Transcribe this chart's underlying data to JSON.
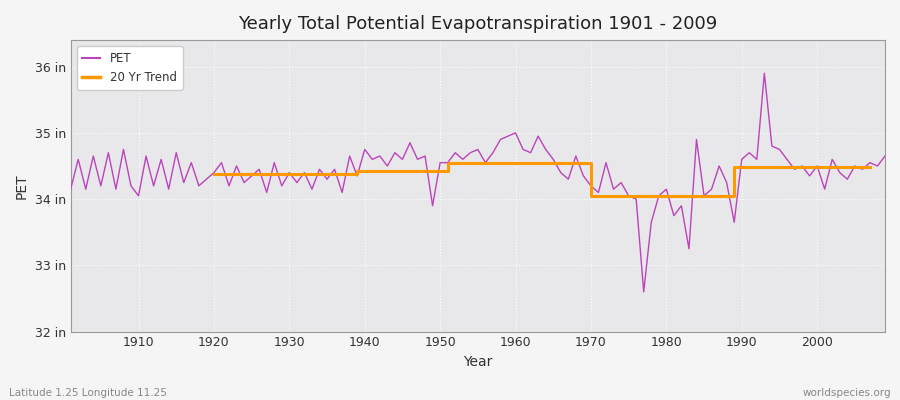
{
  "title": "Yearly Total Potential Evapotranspiration 1901 - 2009",
  "xlabel": "Year",
  "ylabel": "PET",
  "subtitle_left": "Latitude 1.25 Longitude 11.25",
  "subtitle_right": "worldspecies.org",
  "pet_color": "#bb44bb",
  "trend_color": "#ff9900",
  "bg_color": "#f0f0f0",
  "plot_bg_color": "#e8e8e8",
  "ylim": [
    32,
    36.4
  ],
  "yticks": [
    32,
    33,
    34,
    35,
    36
  ],
  "ytick_labels": [
    "32 in",
    "33 in",
    "34 in",
    "35 in",
    "36 in"
  ],
  "years": [
    1901,
    1902,
    1903,
    1904,
    1905,
    1906,
    1907,
    1908,
    1909,
    1910,
    1911,
    1912,
    1913,
    1914,
    1915,
    1916,
    1917,
    1918,
    1919,
    1920,
    1921,
    1922,
    1923,
    1924,
    1925,
    1926,
    1927,
    1928,
    1929,
    1930,
    1931,
    1932,
    1933,
    1934,
    1935,
    1936,
    1937,
    1938,
    1939,
    1940,
    1941,
    1942,
    1943,
    1944,
    1945,
    1946,
    1947,
    1948,
    1949,
    1950,
    1951,
    1952,
    1953,
    1954,
    1955,
    1956,
    1957,
    1958,
    1959,
    1960,
    1961,
    1962,
    1963,
    1964,
    1965,
    1966,
    1967,
    1968,
    1969,
    1970,
    1971,
    1972,
    1973,
    1974,
    1975,
    1976,
    1977,
    1978,
    1979,
    1980,
    1981,
    1982,
    1983,
    1984,
    1985,
    1986,
    1987,
    1988,
    1989,
    1990,
    1991,
    1992,
    1993,
    1994,
    1995,
    1996,
    1997,
    1998,
    1999,
    2000,
    2001,
    2002,
    2003,
    2004,
    2005,
    2006,
    2007,
    2008,
    2009
  ],
  "pet_values": [
    34.15,
    34.6,
    34.15,
    34.65,
    34.2,
    34.7,
    34.15,
    34.75,
    34.2,
    34.05,
    34.65,
    34.2,
    34.6,
    34.15,
    34.7,
    34.25,
    34.55,
    34.2,
    34.3,
    34.4,
    34.55,
    34.2,
    34.5,
    34.25,
    34.35,
    34.45,
    34.1,
    34.55,
    34.2,
    34.4,
    34.25,
    34.4,
    34.15,
    34.45,
    34.3,
    34.45,
    34.1,
    34.65,
    34.35,
    34.75,
    34.6,
    34.65,
    34.5,
    34.7,
    34.6,
    34.85,
    34.6,
    34.65,
    33.9,
    34.55,
    34.55,
    34.7,
    34.6,
    34.7,
    34.75,
    34.55,
    34.7,
    34.9,
    34.95,
    35.0,
    34.75,
    34.7,
    34.95,
    34.75,
    34.6,
    34.4,
    34.3,
    34.65,
    34.35,
    34.2,
    34.1,
    34.55,
    34.15,
    34.25,
    34.05,
    34.0,
    32.6,
    33.65,
    34.05,
    34.15,
    33.75,
    33.9,
    33.25,
    34.9,
    34.05,
    34.15,
    34.5,
    34.25,
    33.65,
    34.6,
    34.7,
    34.6,
    35.9,
    34.8,
    34.75,
    34.6,
    34.45,
    34.5,
    34.35,
    34.5,
    34.15,
    34.6,
    34.4,
    34.3,
    34.5,
    34.45,
    34.55,
    34.5,
    34.65
  ],
  "trend_values": [
    null,
    null,
    null,
    null,
    null,
    null,
    null,
    null,
    null,
    null,
    null,
    null,
    null,
    null,
    null,
    null,
    null,
    null,
    null,
    34.38,
    34.38,
    34.38,
    34.38,
    34.38,
    34.38,
    34.38,
    34.38,
    34.38,
    34.38,
    34.38,
    34.38,
    34.38,
    34.38,
    34.38,
    34.38,
    34.38,
    34.38,
    34.38,
    34.42,
    34.42,
    34.42,
    34.42,
    34.42,
    34.42,
    34.42,
    34.42,
    34.42,
    34.42,
    34.42,
    34.42,
    34.55,
    34.55,
    34.55,
    34.55,
    34.55,
    34.55,
    34.55,
    34.55,
    34.55,
    34.55,
    34.55,
    34.55,
    34.55,
    34.55,
    34.55,
    34.55,
    34.55,
    34.55,
    34.55,
    34.05,
    34.05,
    34.05,
    34.05,
    34.05,
    34.05,
    34.05,
    34.05,
    34.05,
    34.05,
    34.05,
    34.05,
    34.05,
    34.05,
    34.05,
    34.05,
    34.05,
    34.05,
    34.05,
    34.48,
    34.48,
    34.48,
    34.48,
    34.48,
    34.48,
    34.48,
    34.48,
    34.48,
    34.48,
    34.48,
    34.48,
    34.48,
    34.48,
    34.48,
    34.48,
    34.48,
    34.48,
    34.48
  ]
}
